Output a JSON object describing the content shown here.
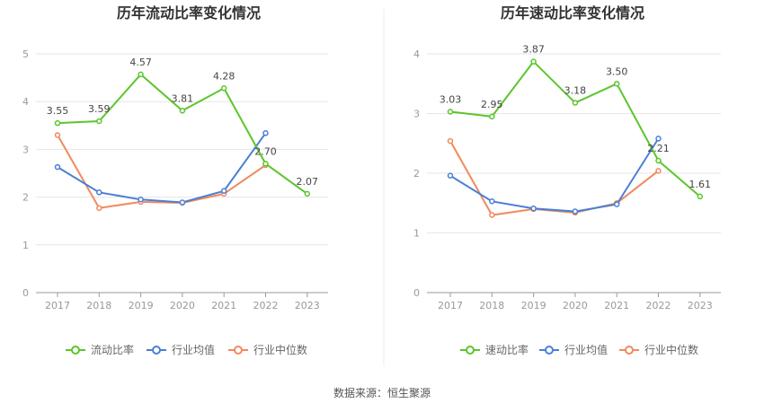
{
  "source_text": "数据来源：恒生聚源",
  "chart_data": [
    {
      "type": "line",
      "title": "历年流动比率变化情况",
      "categories": [
        "2017",
        "2018",
        "2019",
        "2020",
        "2021",
        "2022",
        "2023"
      ],
      "ylim": [
        0,
        5
      ],
      "yticks": [
        "0",
        "1",
        "2",
        "3",
        "4",
        "5"
      ],
      "grid": true,
      "legend_position": "bottom",
      "series": [
        {
          "name": "流动比率",
          "color": "#5cc52c",
          "values": [
            3.55,
            3.59,
            4.57,
            3.81,
            4.28,
            2.7,
            2.07
          ],
          "labels": [
            "3.55",
            "3.59",
            "4.57",
            "3.81",
            "4.28",
            "2.70",
            "2.07"
          ]
        },
        {
          "name": "行业均值",
          "color": "#4a7fd6",
          "values": [
            2.63,
            2.1,
            1.95,
            1.89,
            2.13,
            3.34,
            null
          ]
        },
        {
          "name": "行业中位数",
          "color": "#f08a5d",
          "values": [
            3.3,
            1.77,
            1.9,
            1.88,
            2.07,
            2.67,
            null
          ]
        }
      ]
    },
    {
      "type": "line",
      "title": "历年速动比率变化情况",
      "categories": [
        "2017",
        "2018",
        "2019",
        "2020",
        "2021",
        "2022",
        "2023"
      ],
      "ylim": [
        0,
        4
      ],
      "yticks": [
        "0",
        "1",
        "2",
        "3",
        "4"
      ],
      "grid": true,
      "legend_position": "bottom",
      "series": [
        {
          "name": "速动比率",
          "color": "#5cc52c",
          "values": [
            3.03,
            2.95,
            3.87,
            3.18,
            3.5,
            2.21,
            1.61
          ],
          "labels": [
            "3.03",
            "2.95",
            "3.87",
            "3.18",
            "3.50",
            "2.21",
            "1.61"
          ]
        },
        {
          "name": "行业均值",
          "color": "#4a7fd6",
          "values": [
            1.96,
            1.53,
            1.41,
            1.36,
            1.48,
            2.58,
            null
          ]
        },
        {
          "name": "行业中位数",
          "color": "#f08a5d",
          "values": [
            2.54,
            1.3,
            1.4,
            1.34,
            1.5,
            2.04,
            null
          ]
        }
      ]
    }
  ]
}
